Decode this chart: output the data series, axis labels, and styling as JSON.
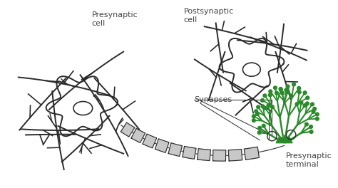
{
  "bg_color": "#ffffff",
  "outline_color": "#2a2a2a",
  "gray_color": "#aaaaaa",
  "gray_fill": "#c8c8c8",
  "green_color": "#2a8a2a",
  "label_color": "#444444",
  "fig_w": 4.74,
  "fig_h": 2.64,
  "dpi": 100,
  "labels": {
    "presynaptic_cell": "Presynaptic\ncell",
    "postsynaptic_cell": "Postsynaptic\ncell",
    "synapses": "Synapses",
    "presynaptic_terminal": "Presynaptic\nterminal"
  }
}
